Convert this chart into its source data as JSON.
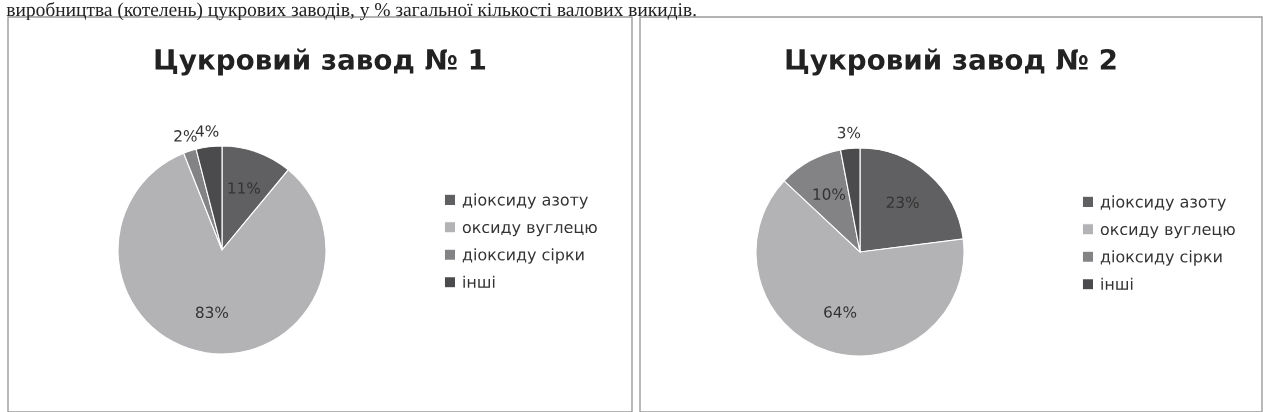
{
  "chart_data": [
    {
      "type": "pie",
      "title": "Цукровий завод № 1",
      "annotations": [
        "виробництва (котелень) цукрових заводів, у % загальної кількості валових викидів."
      ],
      "categories": [
        "діоксиду азоту",
        "оксиду вуглецю",
        "діоксиду сірки",
        "інші"
      ],
      "values": [
        11,
        83,
        2,
        4
      ],
      "value_labels": [
        "11%",
        "83%",
        "2%",
        "4%"
      ],
      "colors": [
        "#606062",
        "#b3b3b5",
        "#838385",
        "#4b4b4d"
      ],
      "legend": "right"
    },
    {
      "type": "pie",
      "title": "Цукровий завод № 2",
      "categories": [
        "діоксиду азоту",
        "оксиду вуглецю",
        "діоксиду сірки",
        "інші"
      ],
      "values": [
        23,
        64,
        10,
        3
      ],
      "value_labels": [
        "23%",
        "64%",
        "10%",
        "3%"
      ],
      "colors": [
        "#606062",
        "#b3b3b5",
        "#838385",
        "#4b4b4d"
      ],
      "legend": "right"
    }
  ]
}
